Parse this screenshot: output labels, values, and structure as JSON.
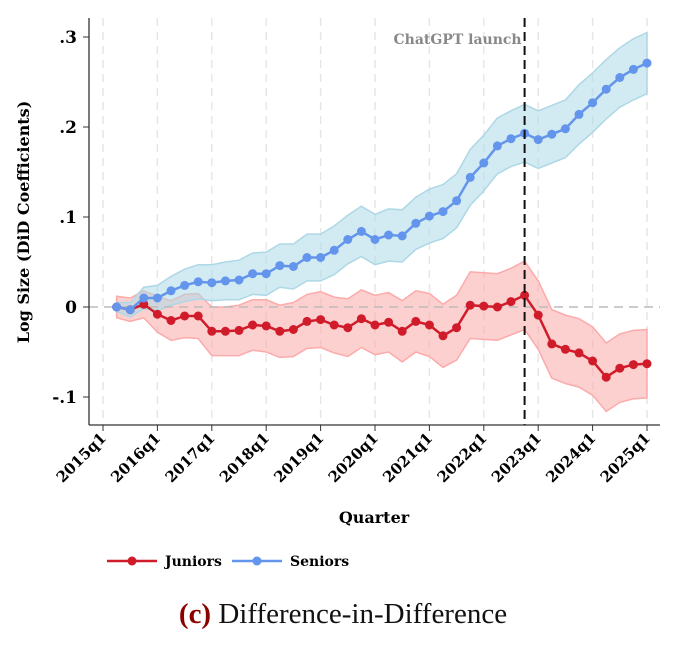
{
  "chart_data": {
    "type": "line",
    "ylabel": "Log Size (DiD Coefficients)",
    "xlabel": "Quarter",
    "caption_letter": "(c)",
    "caption": "Difference-in-Difference",
    "annotation": "ChatGPT launch",
    "event_quarter": "2022q4",
    "ylim": [
      -0.13,
      0.31
    ],
    "yticks": [
      {
        "v": 0.3,
        "label": ".3"
      },
      {
        "v": 0.2,
        "label": ".2"
      },
      {
        "v": 0.1,
        "label": ".1"
      },
      {
        "v": 0,
        "label": "0"
      },
      {
        "v": -0.1,
        "label": "-.1"
      }
    ],
    "xticks": [
      "2015q1",
      "2016q1",
      "2017q1",
      "2018q1",
      "2019q1",
      "2020q1",
      "2021q1",
      "2022q1",
      "2023q1",
      "2024q1",
      "2025q1"
    ],
    "start_quarter": "2015q2",
    "legend_position": "bottom",
    "series": [
      {
        "name": "Juniors",
        "color": "#d01c2a",
        "band": "#fcaaaa",
        "values": [
          0,
          -0.003,
          0.003,
          -0.008,
          -0.015,
          -0.01,
          -0.01,
          -0.027,
          -0.027,
          -0.026,
          -0.02,
          -0.021,
          -0.027,
          -0.025,
          -0.016,
          -0.014,
          -0.02,
          -0.023,
          -0.013,
          -0.02,
          -0.017,
          -0.027,
          -0.016,
          -0.02,
          -0.032,
          -0.023,
          0.002,
          0.001,
          0,
          0.006,
          0.013,
          -0.009,
          -0.041,
          -0.047,
          -0.051,
          -0.06,
          -0.078,
          -0.068,
          -0.064,
          -0.063
        ],
        "ci_halfwidth": [
          0.012,
          0.013,
          0.015,
          0.02,
          0.022,
          0.024,
          0.025,
          0.027,
          0.027,
          0.028,
          0.028,
          0.029,
          0.029,
          0.03,
          0.03,
          0.031,
          0.031,
          0.032,
          0.032,
          0.033,
          0.033,
          0.034,
          0.034,
          0.035,
          0.035,
          0.036,
          0.037,
          0.037,
          0.037,
          0.037,
          0.038,
          0.038,
          0.038,
          0.038,
          0.038,
          0.038,
          0.038,
          0.038,
          0.038,
          0.038
        ]
      },
      {
        "name": "Seniors",
        "color": "#6495ed",
        "band": "#add8e6",
        "values": [
          0,
          -0.003,
          0.01,
          0.01,
          0.018,
          0.024,
          0.028,
          0.027,
          0.029,
          0.03,
          0.037,
          0.037,
          0.046,
          0.045,
          0.055,
          0.055,
          0.063,
          0.075,
          0.084,
          0.075,
          0.08,
          0.079,
          0.093,
          0.101,
          0.106,
          0.118,
          0.144,
          0.16,
          0.179,
          0.187,
          0.193,
          0.186,
          0.192,
          0.198,
          0.214,
          0.227,
          0.242,
          0.255,
          0.264,
          0.271
        ],
        "ci_halfwidth": [
          0.005,
          0.008,
          0.012,
          0.014,
          0.016,
          0.018,
          0.019,
          0.02,
          0.021,
          0.022,
          0.023,
          0.024,
          0.024,
          0.025,
          0.026,
          0.026,
          0.027,
          0.027,
          0.028,
          0.028,
          0.029,
          0.029,
          0.029,
          0.03,
          0.03,
          0.03,
          0.031,
          0.031,
          0.031,
          0.031,
          0.032,
          0.032,
          0.032,
          0.032,
          0.033,
          0.033,
          0.033,
          0.033,
          0.034,
          0.034
        ]
      }
    ]
  }
}
